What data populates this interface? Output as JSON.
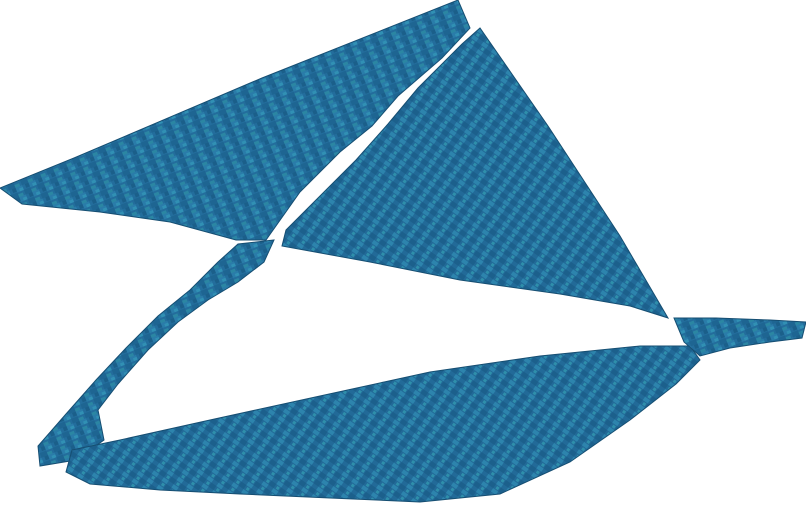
{
  "scene": {
    "subject": "voxel-shape",
    "colors": {
      "background": "#ffffff",
      "base": "#236d9c",
      "light": "#2f87b1",
      "dark": "#1a5c87",
      "teal": "#2c8aa6",
      "edge": "#164e72"
    }
  }
}
